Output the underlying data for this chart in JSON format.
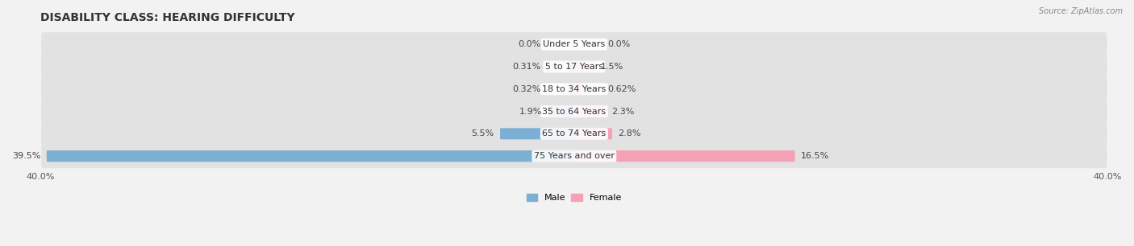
{
  "title": "DISABILITY CLASS: HEARING DIFFICULTY",
  "source": "Source: ZipAtlas.com",
  "categories": [
    "Under 5 Years",
    "5 to 17 Years",
    "18 to 34 Years",
    "35 to 64 Years",
    "65 to 74 Years",
    "75 Years and over"
  ],
  "male_values": [
    0.0,
    0.31,
    0.32,
    1.9,
    5.5,
    39.5
  ],
  "female_values": [
    0.0,
    1.5,
    0.62,
    2.3,
    2.8,
    16.5
  ],
  "male_labels": [
    "0.0%",
    "0.31%",
    "0.32%",
    "1.9%",
    "5.5%",
    "39.5%"
  ],
  "female_labels": [
    "0.0%",
    "1.5%",
    "0.62%",
    "2.3%",
    "2.8%",
    "16.5%"
  ],
  "male_color": "#7bafd4",
  "female_color": "#f4a0b5",
  "axis_limit": 40.0,
  "x_tick_left": "40.0%",
  "x_tick_right": "40.0%",
  "background_color": "#f2f2f2",
  "row_bg_color": "#e2e2e2",
  "title_fontsize": 10,
  "label_fontsize": 8,
  "category_fontsize": 8
}
